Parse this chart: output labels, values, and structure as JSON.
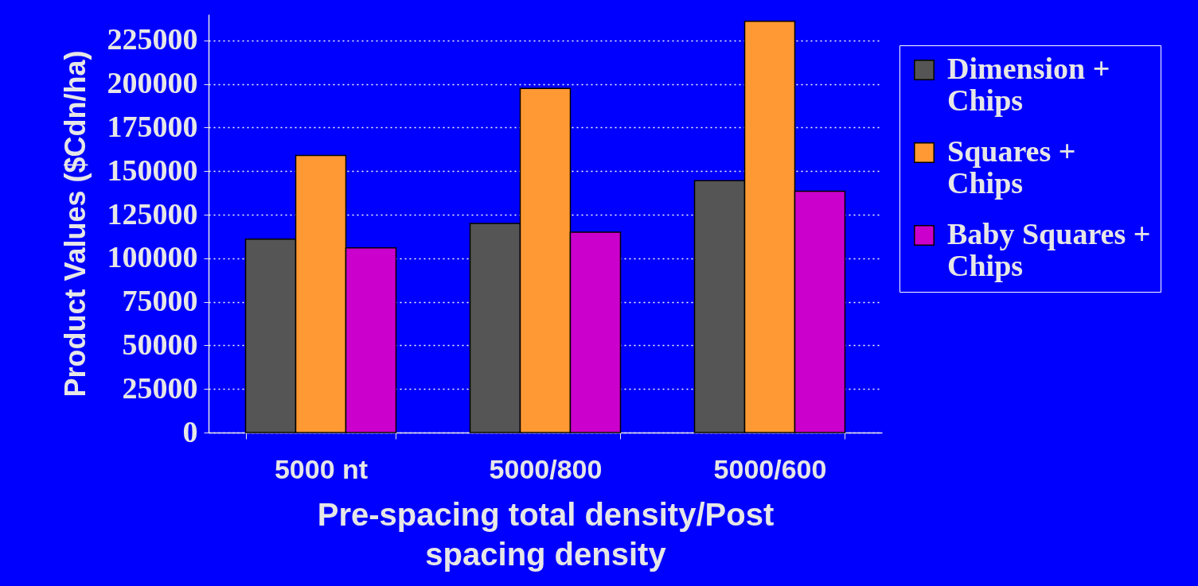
{
  "chart_data": {
    "type": "bar",
    "xlabel": "Pre-spacing total density/Post spacing density",
    "ylabel": "Product Values ($Cdn/ha)",
    "categories": [
      "5000 nt",
      "5000/800",
      "5000/600"
    ],
    "series": [
      {
        "name": "Dimension + Chips",
        "color": "#555555",
        "values": [
          111000,
          120000,
          144500
        ]
      },
      {
        "name": "Squares + Chips",
        "color": "#ff9933",
        "values": [
          159000,
          197500,
          236000
        ]
      },
      {
        "name": "Baby Squares + Chips",
        "color": "#cc00cc",
        "values": [
          106000,
          115000,
          138500
        ]
      }
    ],
    "ylim": [
      0,
      240000
    ],
    "yticks": [
      0,
      25000,
      50000,
      75000,
      100000,
      125000,
      150000,
      175000,
      200000,
      225000
    ],
    "grid": "y",
    "legend": "right"
  }
}
